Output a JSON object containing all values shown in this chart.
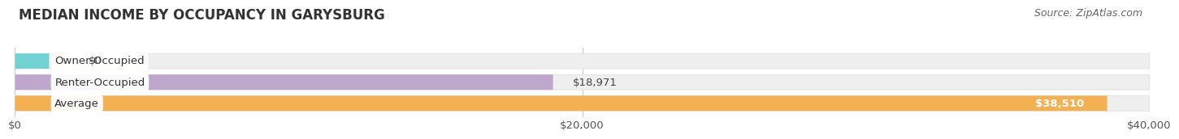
{
  "title": "MEDIAN INCOME BY OCCUPANCY IN GARYSBURG",
  "source": "Source: ZipAtlas.com",
  "categories": [
    "Owner-Occupied",
    "Renter-Occupied",
    "Average"
  ],
  "values": [
    0,
    18971,
    38510
  ],
  "bar_colors": [
    "#5ECECE",
    "#B99CC9",
    "#F5A93D"
  ],
  "bar_bg_color": "#EFEFEF",
  "value_labels": [
    "$0",
    "$18,971",
    "$38,510"
  ],
  "xlim": [
    0,
    40000
  ],
  "xticks": [
    0,
    20000,
    40000
  ],
  "xtick_labels": [
    "$0",
    "$20,000",
    "$40,000"
  ],
  "bar_height": 0.72,
  "title_fontsize": 12,
  "label_fontsize": 9.5,
  "value_fontsize": 9.5,
  "source_fontsize": 9,
  "background_color": "#FFFFFF",
  "grid_color": "#CCCCCC",
  "text_color": "#444444",
  "label_bg_color": "#FFFFFF"
}
